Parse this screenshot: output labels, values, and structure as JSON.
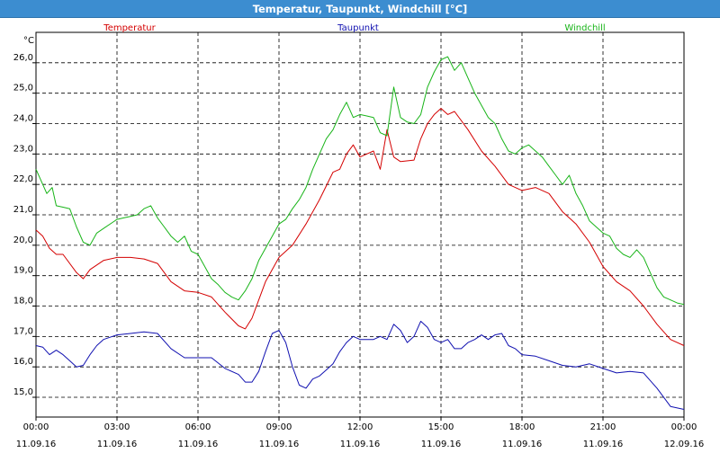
{
  "window": {
    "title": "Temperatur, Taupunkt, Windchill [°C]"
  },
  "chart_data": {
    "type": "line",
    "title": "Temperatur, Taupunkt, Windchill [°C]",
    "ylabel": "°C",
    "ylim": [
      14.35,
      27.0
    ],
    "yticks": [
      "15,0",
      "16,0",
      "17,0",
      "18,0",
      "19,0",
      "20,0",
      "21,0",
      "22,0",
      "23,0",
      "24,0",
      "25,0",
      "26,0"
    ],
    "xlim_hours": [
      0,
      24
    ],
    "xticks": [
      {
        "time": "00:00",
        "date": "11.09.16"
      },
      {
        "time": "03:00",
        "date": "11.09.16"
      },
      {
        "time": "06:00",
        "date": "11.09.16"
      },
      {
        "time": "09:00",
        "date": "11.09.16"
      },
      {
        "time": "12:00",
        "date": "11.09.16"
      },
      {
        "time": "15:00",
        "date": "11.09.16"
      },
      {
        "time": "18:00",
        "date": "11.09.16"
      },
      {
        "time": "21:00",
        "date": "11.09.16"
      },
      {
        "time": "00:00",
        "date": "12.09.16"
      }
    ],
    "grid": true,
    "legend_position": "top",
    "series": [
      {
        "name": "Temperatur",
        "color": "#d40000",
        "x": [
          0,
          0.25,
          0.5,
          0.75,
          1,
          1.5,
          1.75,
          2,
          2.5,
          3,
          3.5,
          4,
          4.5,
          5,
          5.5,
          6,
          6.5,
          7,
          7.5,
          7.75,
          8,
          8.25,
          8.5,
          9,
          9.5,
          10,
          10.5,
          11,
          11.25,
          11.5,
          11.75,
          12,
          12.25,
          12.5,
          12.75,
          13,
          13.25,
          13.5,
          14,
          14.25,
          14.5,
          14.75,
          15,
          15.25,
          15.5,
          16,
          16.5,
          17,
          17.5,
          18,
          18.5,
          19,
          19.5,
          20,
          20.5,
          21,
          21.5,
          22,
          22.5,
          23,
          23.5,
          24
        ],
        "values": [
          20.5,
          20.3,
          19.9,
          19.7,
          19.7,
          19.1,
          18.9,
          19.2,
          19.5,
          19.6,
          19.6,
          19.55,
          19.4,
          18.8,
          18.5,
          18.45,
          18.3,
          17.8,
          17.35,
          17.25,
          17.6,
          18.2,
          18.8,
          19.6,
          20.0,
          20.7,
          21.5,
          22.4,
          22.5,
          23.0,
          23.3,
          22.9,
          23.0,
          23.1,
          22.5,
          23.8,
          22.9,
          22.75,
          22.8,
          23.5,
          24.0,
          24.3,
          24.5,
          24.3,
          24.4,
          23.8,
          23.1,
          22.6,
          22.0,
          21.8,
          21.9,
          21.7,
          21.1,
          20.7,
          20.1,
          19.3,
          18.8,
          18.5,
          18.0,
          17.4,
          16.9,
          16.7
        ]
      },
      {
        "name": "Taupunkt",
        "color": "#1010b0",
        "x": [
          0,
          0.25,
          0.5,
          0.75,
          1,
          1.25,
          1.5,
          1.75,
          2,
          2.25,
          2.5,
          3,
          3.5,
          4,
          4.5,
          5,
          5.5,
          6,
          6.5,
          7,
          7.5,
          7.75,
          8,
          8.25,
          8.5,
          8.75,
          9,
          9.25,
          9.5,
          9.75,
          10,
          10.25,
          10.5,
          10.75,
          11,
          11.25,
          11.5,
          11.75,
          12,
          12.25,
          12.5,
          12.75,
          13,
          13.25,
          13.5,
          13.75,
          14,
          14.25,
          14.5,
          14.75,
          15,
          15.25,
          15.5,
          15.75,
          16,
          16.25,
          16.5,
          16.75,
          17,
          17.25,
          17.5,
          17.75,
          18,
          18.5,
          19,
          19.5,
          20,
          20.5,
          21,
          21.5,
          22,
          22.5,
          23,
          23.5,
          24
        ],
        "values": [
          16.7,
          16.65,
          16.4,
          16.55,
          16.4,
          16.2,
          16.0,
          16.05,
          16.4,
          16.7,
          16.9,
          17.05,
          17.1,
          17.15,
          17.1,
          16.6,
          16.3,
          16.3,
          16.3,
          15.95,
          15.75,
          15.5,
          15.5,
          15.85,
          16.5,
          17.1,
          17.2,
          16.8,
          16.0,
          15.4,
          15.3,
          15.6,
          15.7,
          15.9,
          16.1,
          16.5,
          16.8,
          17.0,
          16.9,
          16.9,
          16.9,
          17.0,
          16.9,
          17.4,
          17.2,
          16.8,
          17.0,
          17.5,
          17.3,
          16.9,
          16.8,
          16.9,
          16.6,
          16.6,
          16.8,
          16.9,
          17.05,
          16.9,
          17.05,
          17.1,
          16.7,
          16.6,
          16.4,
          16.35,
          16.2,
          16.05,
          16.0,
          16.1,
          15.95,
          15.8,
          15.85,
          15.8,
          15.3,
          14.7,
          14.6
        ]
      },
      {
        "name": "Windchill",
        "color": "#18b418",
        "x": [
          0,
          0.25,
          0.4,
          0.6,
          0.75,
          1,
          1.25,
          1.5,
          1.75,
          2,
          2.25,
          2.5,
          3,
          3.25,
          3.5,
          3.75,
          4,
          4.25,
          4.5,
          4.75,
          5,
          5.25,
          5.5,
          5.75,
          6,
          6.25,
          6.5,
          6.75,
          7,
          7.25,
          7.5,
          7.75,
          8,
          8.25,
          8.5,
          8.75,
          9,
          9.25,
          9.5,
          9.75,
          10,
          10.25,
          10.5,
          10.75,
          11,
          11.25,
          11.5,
          11.75,
          12,
          12.25,
          12.5,
          12.75,
          13,
          13.25,
          13.5,
          13.75,
          14,
          14.25,
          14.5,
          14.75,
          15,
          15.25,
          15.5,
          15.75,
          16,
          16.25,
          16.5,
          16.75,
          17,
          17.25,
          17.5,
          17.75,
          18,
          18.25,
          18.5,
          18.75,
          19,
          19.25,
          19.5,
          19.75,
          20,
          20.25,
          20.5,
          20.75,
          21,
          21.25,
          21.5,
          21.75,
          22,
          22.25,
          22.5,
          22.75,
          23,
          23.25,
          23.5,
          23.75,
          24
        ],
        "values": [
          22.5,
          22.0,
          21.7,
          21.9,
          21.3,
          21.25,
          21.2,
          20.6,
          20.1,
          20.0,
          20.4,
          20.55,
          20.85,
          20.9,
          20.95,
          21.0,
          21.2,
          21.3,
          20.9,
          20.6,
          20.3,
          20.1,
          20.3,
          19.8,
          19.7,
          19.3,
          18.9,
          18.7,
          18.45,
          18.3,
          18.2,
          18.5,
          18.9,
          19.5,
          19.9,
          20.3,
          20.7,
          20.85,
          21.2,
          21.5,
          21.9,
          22.5,
          23.0,
          23.5,
          23.8,
          24.3,
          24.7,
          24.2,
          24.3,
          24.25,
          24.2,
          23.7,
          23.6,
          25.2,
          24.2,
          24.05,
          24.0,
          24.3,
          25.2,
          25.7,
          26.1,
          26.2,
          25.75,
          26.0,
          25.5,
          25.0,
          24.6,
          24.2,
          24.0,
          23.5,
          23.1,
          23.0,
          23.2,
          23.3,
          23.1,
          22.9,
          22.6,
          22.3,
          22.0,
          22.3,
          21.7,
          21.3,
          20.8,
          20.6,
          20.4,
          20.3,
          19.9,
          19.7,
          19.6,
          19.85,
          19.6,
          19.1,
          18.6,
          18.3,
          18.2,
          18.1,
          18.05
        ]
      }
    ]
  }
}
